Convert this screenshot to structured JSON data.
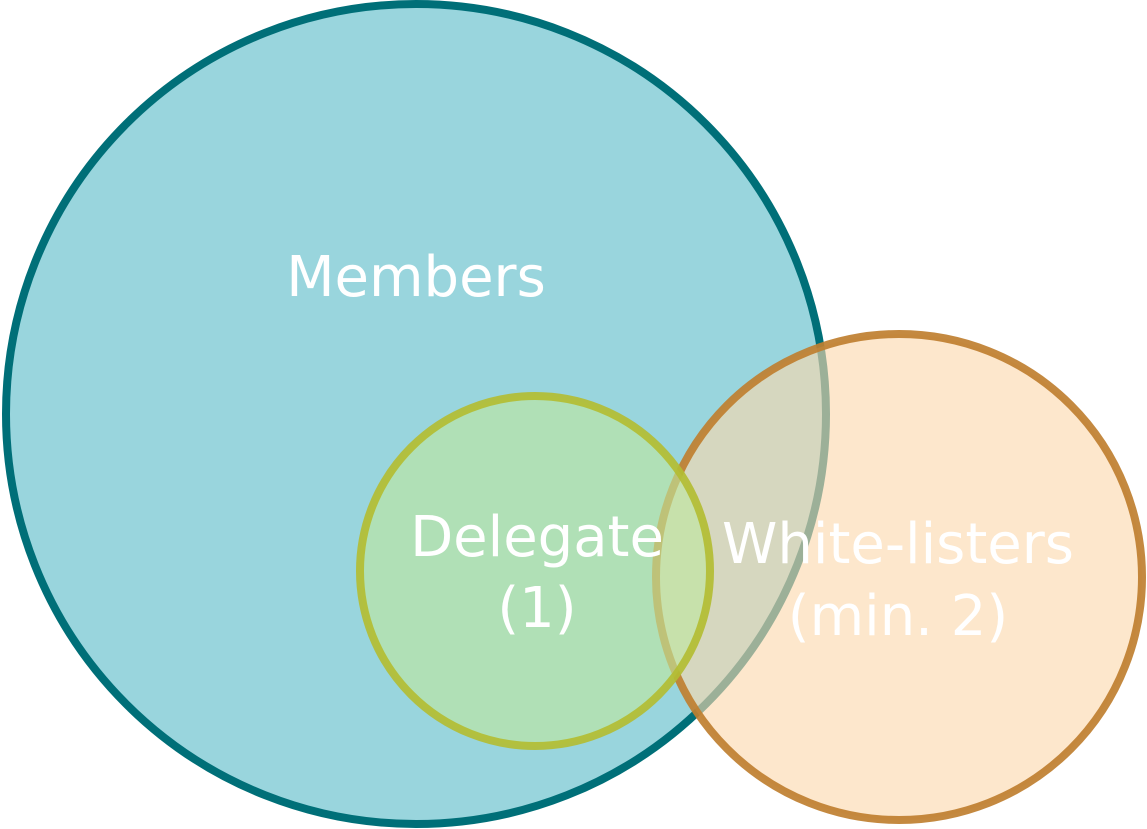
{
  "diagram": {
    "type": "venn",
    "sets": {
      "members": {
        "label": "Members",
        "fill": "#99d5dd",
        "stroke": "#006f78"
      },
      "delegate": {
        "label_line1": "Delegate",
        "label_line2": "(1)",
        "fill": "#bfe69e",
        "stroke": "#b3bd33"
      },
      "whitelisters": {
        "label_line1": "White-listers",
        "label_line2": "(min. 2)",
        "fill": "#fbd9ad",
        "stroke": "#bf7f30"
      }
    },
    "label_color": "#ffffff"
  }
}
